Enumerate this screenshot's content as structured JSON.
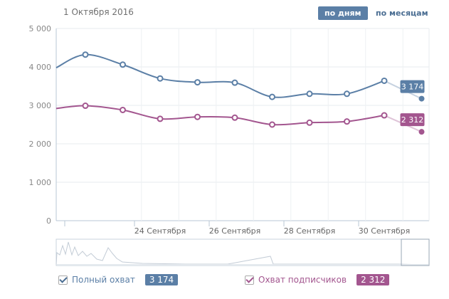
{
  "header": {
    "date": "1 Октября 2016",
    "toggle_days": "по дням",
    "toggle_months": "по месяцам"
  },
  "legend": {
    "reach_label": "Полный охват",
    "reach_value": "3 174",
    "subs_label": "Охват подписчиков",
    "subs_value": "2 312"
  },
  "chart_data": {
    "type": "line",
    "ylim": [
      0,
      5000
    ],
    "yticks": [
      "0",
      "1 000",
      "2 000",
      "3 000",
      "4 000",
      "5 000"
    ],
    "x_labels": [
      "24 Сентября",
      "26 Сентября",
      "28 Сентября",
      "30 Сентября"
    ],
    "x_label_days": [
      0,
      2,
      4,
      6
    ],
    "days": [
      -2,
      -1,
      0,
      1,
      2,
      3,
      4,
      5,
      6,
      7,
      8
    ],
    "colors": {
      "reach": "#5b7fa6",
      "subs": "#a3568f"
    },
    "series": [
      {
        "name": "Полный охват",
        "start": 3980,
        "values": [
          4320,
          4060,
          3700,
          3600,
          3590,
          3220,
          3300,
          3300,
          3640,
          3174
        ],
        "end_label": "3 174"
      },
      {
        "name": "Охват подписчиков",
        "start": 2920,
        "values": [
          2990,
          2880,
          2650,
          2700,
          2680,
          2500,
          2550,
          2580,
          2740,
          2312
        ],
        "end_label": "2 312"
      }
    ]
  }
}
